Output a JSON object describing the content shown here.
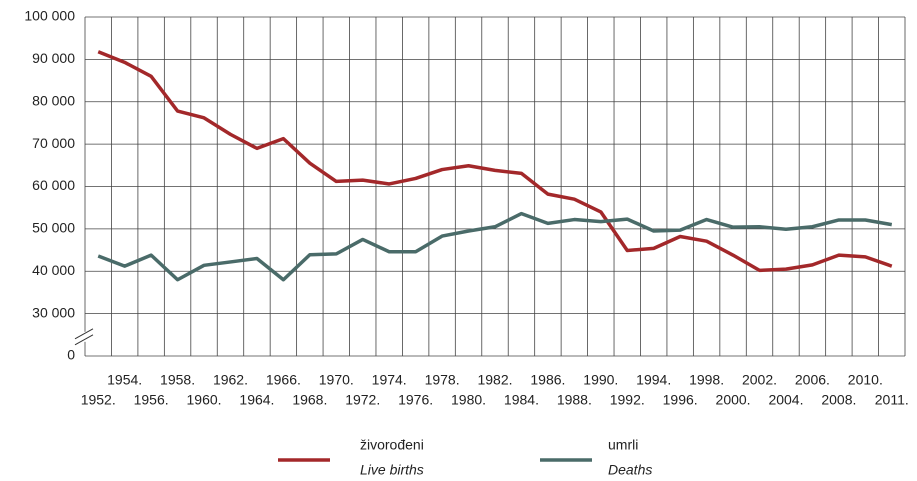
{
  "chart_data": {
    "type": "line",
    "categories": [
      "1952.",
      "1954.",
      "1956.",
      "1958.",
      "1960.",
      "1962.",
      "1964.",
      "1966.",
      "1968.",
      "1970.",
      "1972.",
      "1974.",
      "1976.",
      "1978.",
      "1980.",
      "1982.",
      "1984.",
      "1986.",
      "1988.",
      "1990.",
      "1992.",
      "1994.",
      "1996.",
      "1998.",
      "2000.",
      "2002.",
      "2004.",
      "2006.",
      "2008.",
      "2010.",
      "2011."
    ],
    "series": [
      {
        "name": "živorođeni",
        "name_en": "Live births",
        "color": "#a3282a",
        "values": [
          91800,
          89300,
          86000,
          77800,
          76200,
          72300,
          69000,
          71300,
          65500,
          61200,
          61500,
          60600,
          61900,
          64000,
          64900,
          63800,
          63100,
          58200,
          57000,
          54000,
          44900,
          45400,
          48200,
          47100,
          43800,
          40200,
          40500,
          41500,
          43800,
          43400,
          41200
        ]
      },
      {
        "name": "umrli",
        "name_en": "Deaths",
        "color": "#4a6b69",
        "values": [
          43600,
          41200,
          43800,
          38000,
          41400,
          42200,
          43000,
          38000,
          43900,
          44100,
          47500,
          44600,
          44600,
          48300,
          49500,
          50500,
          53600,
          51300,
          52200,
          51700,
          52300,
          49500,
          49700,
          52200,
          50400,
          50500,
          49900,
          50500,
          52100,
          52100,
          51000
        ]
      }
    ],
    "ylim": [
      0,
      100000
    ],
    "axis_break": [
      0,
      30000
    ],
    "yticks": [
      {
        "value": 0,
        "label": "0"
      },
      {
        "value": 30000,
        "label": "30 000"
      },
      {
        "value": 40000,
        "label": "40 000"
      },
      {
        "value": 50000,
        "label": "50 000"
      },
      {
        "value": 60000,
        "label": "60 000"
      },
      {
        "value": 70000,
        "label": "70 000"
      },
      {
        "value": 80000,
        "label": "80 000"
      },
      {
        "value": 90000,
        "label": "90 000"
      },
      {
        "value": 100000,
        "label": "100 000"
      }
    ],
    "grid": true
  }
}
